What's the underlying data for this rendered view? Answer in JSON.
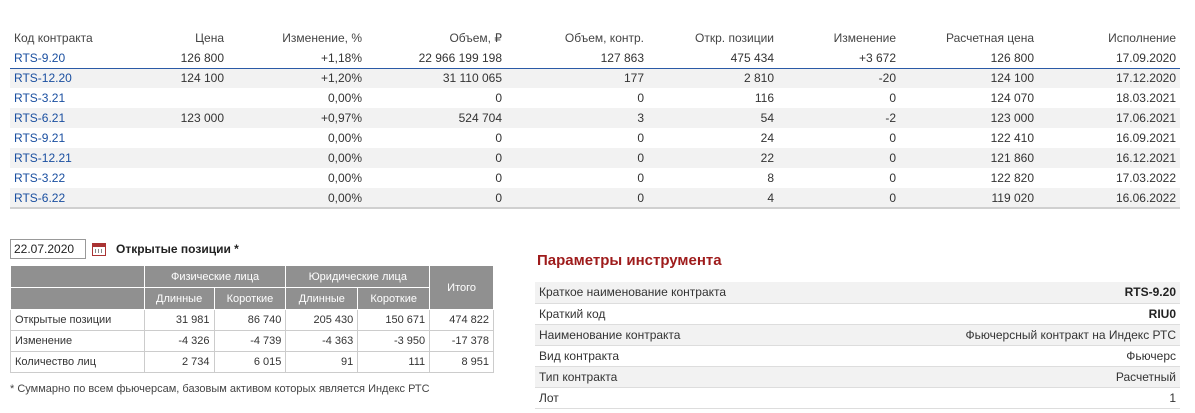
{
  "contracts": {
    "headers": [
      "Код контракта",
      "Цена",
      "Изменение, %",
      "Объем, ₽",
      "Объем, контр.",
      "Откр. позиции",
      "Изменение",
      "Расчетная цена",
      "Исполнение"
    ],
    "rows": [
      {
        "code": "RTS-9.20",
        "price": "126 800",
        "chg_pct": "+1,18%",
        "vol_rub": "22 966 199 198",
        "vol_contr": "127 863",
        "oi": "475 434",
        "oi_chg": "+3 672",
        "settle": "126 800",
        "expiry": "17.09.2020"
      },
      {
        "code": "RTS-12.20",
        "price": "124 100",
        "chg_pct": "+1,20%",
        "vol_rub": "31 110 065",
        "vol_contr": "177",
        "oi": "2 810",
        "oi_chg": "-20",
        "settle": "124 100",
        "expiry": "17.12.2020"
      },
      {
        "code": "RTS-3.21",
        "price": "",
        "chg_pct": "0,00%",
        "vol_rub": "0",
        "vol_contr": "0",
        "oi": "116",
        "oi_chg": "0",
        "settle": "124 070",
        "expiry": "18.03.2021"
      },
      {
        "code": "RTS-6.21",
        "price": "123 000",
        "chg_pct": "+0,97%",
        "vol_rub": "524 704",
        "vol_contr": "3",
        "oi": "54",
        "oi_chg": "-2",
        "settle": "123 000",
        "expiry": "17.06.2021"
      },
      {
        "code": "RTS-9.21",
        "price": "",
        "chg_pct": "0,00%",
        "vol_rub": "0",
        "vol_contr": "0",
        "oi": "24",
        "oi_chg": "0",
        "settle": "122 410",
        "expiry": "16.09.2021"
      },
      {
        "code": "RTS-12.21",
        "price": "",
        "chg_pct": "0,00%",
        "vol_rub": "0",
        "vol_contr": "0",
        "oi": "22",
        "oi_chg": "0",
        "settle": "121 860",
        "expiry": "16.12.2021"
      },
      {
        "code": "RTS-3.22",
        "price": "",
        "chg_pct": "0,00%",
        "vol_rub": "0",
        "vol_contr": "0",
        "oi": "8",
        "oi_chg": "0",
        "settle": "122 820",
        "expiry": "17.03.2022"
      },
      {
        "code": "RTS-6.22",
        "price": "",
        "chg_pct": "0,00%",
        "vol_rub": "0",
        "vol_contr": "0",
        "oi": "4",
        "oi_chg": "0",
        "settle": "119 020",
        "expiry": "16.06.2022"
      }
    ]
  },
  "open_interest": {
    "date": "22.07.2020",
    "title": "Открытые позиции *",
    "group_physical": "Физические лица",
    "group_legal": "Юридические лица",
    "total_header": "Итого",
    "long_label": "Длинные",
    "short_label": "Короткие",
    "rows": [
      {
        "label": "Открытые позиции",
        "phys_long": "31 981",
        "phys_short": "86 740",
        "legal_long": "205 430",
        "legal_short": "150 671",
        "total": "474 822"
      },
      {
        "label": "Изменение",
        "phys_long": "-4 326",
        "phys_short": "-4 739",
        "legal_long": "-4 363",
        "legal_short": "-3 950",
        "total": "-17 378"
      },
      {
        "label": "Количество лиц",
        "phys_long": "2 734",
        "phys_short": "6 015",
        "legal_long": "91",
        "legal_short": "111",
        "total": "8 951"
      }
    ],
    "footnote": "* Суммарно по всем фьючерсам, базовым активом которых является Индекс РТС"
  },
  "params": {
    "title": "Параметры инструмента",
    "rows": [
      {
        "label": "Краткое наименование контракта",
        "value": "RTS-9.20"
      },
      {
        "label": "Краткий код",
        "value": "RIU0"
      },
      {
        "label": "Наименование контракта",
        "value": "Фьючерсный контракт на Индекс РТС"
      },
      {
        "label": "Вид контракта",
        "value": "Фьючерс"
      },
      {
        "label": "Тип контракта",
        "value": "Расчетный"
      },
      {
        "label": "Лот",
        "value": "1"
      }
    ]
  },
  "colors": {
    "positive": "#1e8a1e",
    "negative": "#d01010",
    "link": "#1a4fa0",
    "title_accent": "#9e1b1b",
    "table_header_bg": "#909090"
  }
}
